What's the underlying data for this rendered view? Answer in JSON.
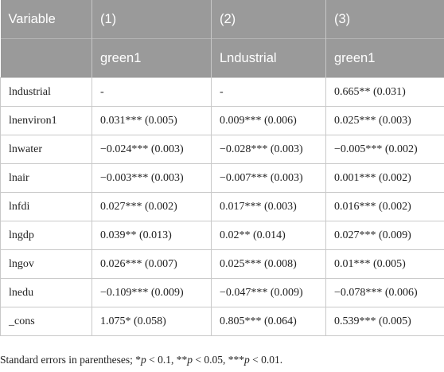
{
  "header": {
    "row1": [
      "Variable",
      "(1)",
      "(2)",
      "(3)"
    ],
    "row2": [
      "",
      "green1",
      "Lndustrial",
      "green1"
    ]
  },
  "rows": [
    {
      "var": "lndustrial",
      "c1": "-",
      "c2": "-",
      "c3": "0.665** (0.031)"
    },
    {
      "var": "lnenviron1",
      "c1": "0.031*** (0.005)",
      "c2": "0.009*** (0.006)",
      "c3": "0.025*** (0.003)"
    },
    {
      "var": "lnwater",
      "c1": "−0.024*** (0.003)",
      "c2": "−0.028*** (0.003)",
      "c3": "−0.005*** (0.002)"
    },
    {
      "var": "lnair",
      "c1": "−0.003*** (0.003)",
      "c2": "−0.007*** (0.003)",
      "c3": "0.001*** (0.002)"
    },
    {
      "var": "lnfdi",
      "c1": "0.027*** (0.002)",
      "c2": "0.017*** (0.003)",
      "c3": "0.016*** (0.002)"
    },
    {
      "var": "lngdp",
      "c1": "0.039** (0.013)",
      "c2": "0.02** (0.014)",
      "c3": "0.027*** (0.009)"
    },
    {
      "var": "lngov",
      "c1": "0.026*** (0.007)",
      "c2": "0.025*** (0.008)",
      "c3": "0.01*** (0.005)"
    },
    {
      "var": "lnedu",
      "c1": "−0.109*** (0.009)",
      "c2": "−0.047*** (0.009)",
      "c3": "−0.078*** (0.006)"
    },
    {
      "var": "_cons",
      "c1": "1.075* (0.058)",
      "c2": "0.805*** (0.064)",
      "c3": "0.539*** (0.005)"
    }
  ],
  "footnote": {
    "prefix": "Standard errors in parentheses; *",
    "p1": "p",
    "t1": " < 0.1, **",
    "p2": "p",
    "t2": " < 0.05, ***",
    "p3": "p",
    "t3": " < 0.01."
  }
}
